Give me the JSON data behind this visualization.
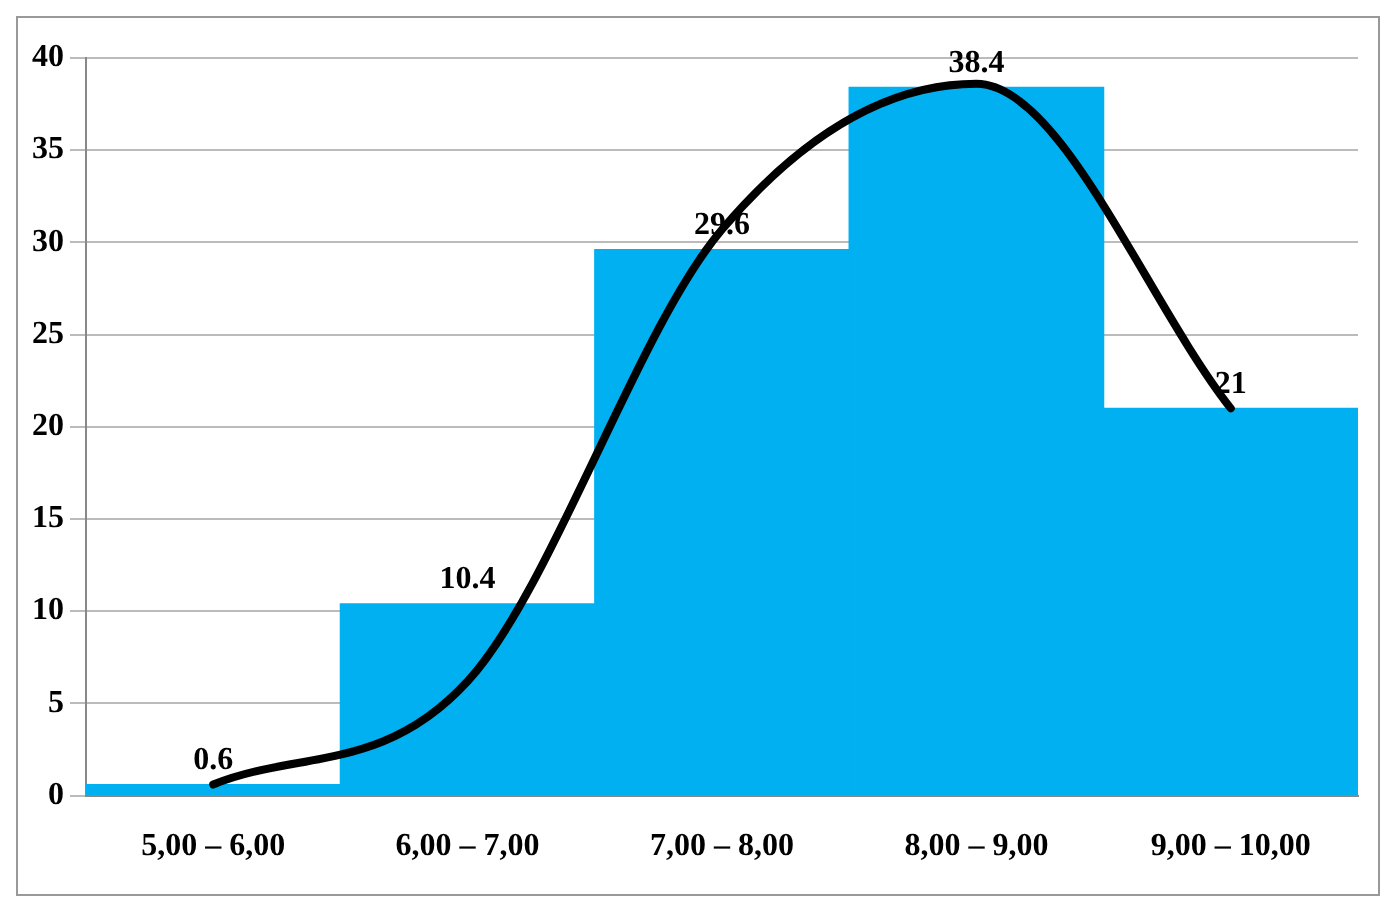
{
  "chart_data": {
    "type": "bar",
    "categories": [
      "5,00 – 6,00",
      "6,00 – 7,00",
      "7,00 – 8,00",
      "8,00 – 9,00",
      "9,00 – 10,00"
    ],
    "series": [
      {
        "color": "#00b0f0",
        "values": [
          0.6,
          10.4,
          29.6,
          38.4,
          21
        ],
        "value_labels": [
          "0.6",
          "10.4",
          "29.6",
          "38.4",
          "21"
        ]
      },
      {
        "type": "line",
        "color": "#000000",
        "values": [
          0.6,
          6.2,
          30.7,
          38.6,
          21
        ]
      }
    ],
    "ylim": [
      0,
      40
    ],
    "yticks": [
      0,
      5,
      10,
      15,
      20,
      25,
      30,
      35,
      40
    ],
    "grid": "y",
    "legend": false,
    "marker": "none",
    "line_style": "solid"
  }
}
